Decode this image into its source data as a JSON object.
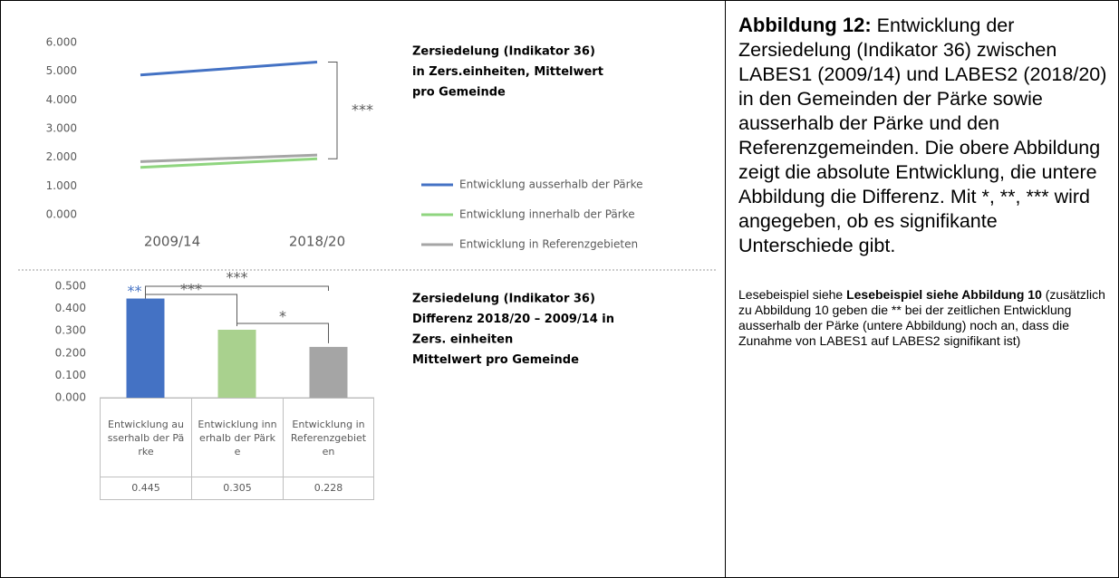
{
  "chart_data": [
    {
      "type": "line",
      "title": [
        "Zersiedelung  (Indikator 36)",
        "in Zers.einheiten, Mittelwert",
        "pro Gemeinde"
      ],
      "categories": [
        "2009/14",
        "2018/20"
      ],
      "series": [
        {
          "name": "Entwicklung ausserhalb der Pärke",
          "color": "#4472c4",
          "values": [
            4.87,
            5.32
          ]
        },
        {
          "name": "Entwicklung innerhalb der Pärke",
          "color": "#8fd57f",
          "values": [
            1.65,
            1.95
          ]
        },
        {
          "name": "Entwicklung in Referenzgebieten",
          "color": "#a5a5a5",
          "values": [
            1.85,
            2.08
          ]
        }
      ],
      "ylim": [
        0,
        6
      ],
      "yticks": [
        {
          "value": 0,
          "label": "0.000"
        },
        {
          "value": 1,
          "label": "1.000"
        },
        {
          "value": 2,
          "label": "2.000"
        },
        {
          "value": 3,
          "label": "3.000"
        },
        {
          "value": 4,
          "label": "4.000"
        },
        {
          "value": 5,
          "label": "5.000"
        },
        {
          "value": 6,
          "label": "6.000"
        }
      ],
      "legend": "right",
      "annotations": [
        "***"
      ]
    },
    {
      "type": "bar",
      "title": [
        "Zersiedelung  (Indikator 36)",
        "Differenz 2018/20 – 2009/14 in",
        "Zers. einheiten",
        "Mittelwert pro Gemeinde"
      ],
      "categories": [
        "Entwicklung ausserhalb der Pärke",
        "Entwicklung innerhalb der Pärke",
        "Entwicklung in Referenzgebieten"
      ],
      "values": [
        0.445,
        0.305,
        0.228
      ],
      "colors": [
        "#4472c4",
        "#a9d18e",
        "#a5a5a5"
      ],
      "ylim": [
        0,
        0.5
      ],
      "yticks": [
        {
          "value": 0,
          "label": "0.000"
        },
        {
          "value": 0.1,
          "label": "0.100"
        },
        {
          "value": 0.2,
          "label": "0.200"
        },
        {
          "value": 0.3,
          "label": "0.300"
        },
        {
          "value": 0.4,
          "label": "0.400"
        },
        {
          "value": 0.5,
          "label": "0.500"
        }
      ],
      "annotations": [
        "**",
        "***",
        "***",
        "*"
      ]
    }
  ],
  "caption": {
    "label": "Abbildung 12:",
    "text": "Entwicklung der Zersiedelung (Indikator 36) zwischen LABES1 (2009/14) und LABES2 (2018/20) in den Gemeinden der Pärke sowie ausserhalb der Pärke und den Referenzgemeinden. Die obere Abbildung zeigt die absolute Entwicklung, die untere Abbildung die Differenz. Mit *, **, *** wird angegeben, ob es signifikante Unterschiede gibt."
  },
  "reading_example": {
    "lead": "Lesebeispiel siehe ",
    "bold": "Lesebeispiel siehe Abbildung 10",
    "rest": " (zusätzlich zu Abbildung 10 geben die ** bei der zeitlichen Entwicklung ausserhalb der Pärke (untere Abbildung) noch an, dass die Zunahme von LABES1 auf LABES2 signifikant ist)"
  }
}
